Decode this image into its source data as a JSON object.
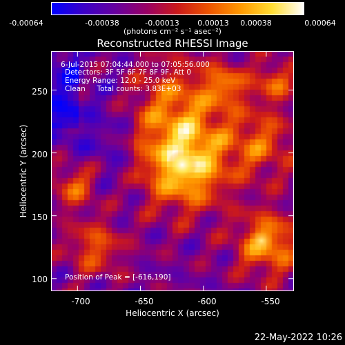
{
  "colorbar": {
    "ticks": [
      "-0.00064",
      "-0.00038",
      "-0.00013",
      "0.00013",
      "0.00038",
      "0.00064"
    ],
    "unit_label": "(photons cm⁻² s⁻¹ asec⁻²)",
    "stops": [
      "#0000ff",
      "#3b00c8",
      "#6600a0",
      "#990066",
      "#cc1a1a",
      "#ee5500",
      "#ff9900",
      "#ffdd33",
      "#ffffff"
    ]
  },
  "title": "Reconstructed RHESSI Image",
  "annotations": {
    "time_range": "6-Jul-2015 07:04:44.000 to 07:05:56.000",
    "detectors": "Detectors: 3F 5F 6F 7F 8F 9F, Att 0",
    "energy_range": "Energy Range: 12.0 - 25.0 keV",
    "clean_counts": "Clean     Total counts: 3.83E+03",
    "peak_position": "Position of Peak = [-616,190]"
  },
  "axes": {
    "xlabel": "Heliocentric X (arcsec)",
    "ylabel": "Heliocentric Y (arcsec)",
    "xticks": [
      "-700",
      "-650",
      "-600",
      "-550"
    ],
    "yticks": [
      "250",
      "200",
      "150",
      "100"
    ],
    "x_tick_values": [
      -700,
      -650,
      -600,
      -550
    ],
    "y_tick_values": [
      250,
      200,
      150,
      100
    ],
    "xlim": [
      -721,
      -528
    ],
    "ylim": [
      90,
      281
    ]
  },
  "image": {
    "peak": [
      -616,
      190
    ]
  },
  "timestamp": "22-May-2022 10:26"
}
